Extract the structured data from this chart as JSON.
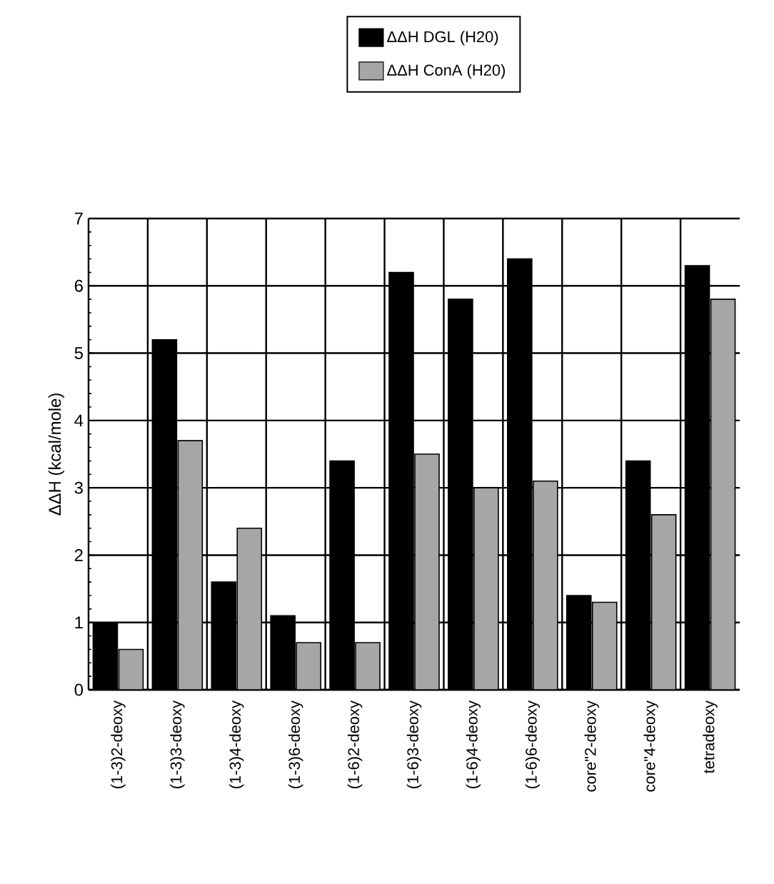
{
  "chart_data": {
    "type": "bar",
    "ylabel": "ΔΔH (kcal/mole)",
    "categories": [
      "(1-3)2-deoxy",
      "(1-3)3-deoxy",
      "(1-3)4-deoxy",
      "(1-3)6-deoxy",
      "(1-6)2-deoxy",
      "(1-6)3-deoxy",
      "(1-6)4-deoxy",
      "(1-6)6-deoxy",
      "core\"2-deoxy",
      "core\"4-deoxy",
      "tetradeoxy"
    ],
    "series": [
      {
        "name": "ΔΔH DGL (H20)",
        "color": "#000000",
        "values": [
          1.0,
          5.2,
          1.6,
          1.1,
          3.4,
          6.2,
          5.8,
          6.4,
          1.4,
          3.4,
          6.3
        ]
      },
      {
        "name": "ΔΔH ConA (H20)",
        "color": "#a6a6a6",
        "values": [
          0.6,
          3.7,
          2.4,
          0.7,
          0.7,
          3.5,
          3.0,
          3.1,
          1.3,
          2.6,
          5.8
        ]
      }
    ],
    "ylim": [
      0,
      7
    ],
    "yticks": [
      0,
      1,
      2,
      3,
      4,
      5,
      6,
      7
    ],
    "grid": true,
    "legend": "top"
  }
}
